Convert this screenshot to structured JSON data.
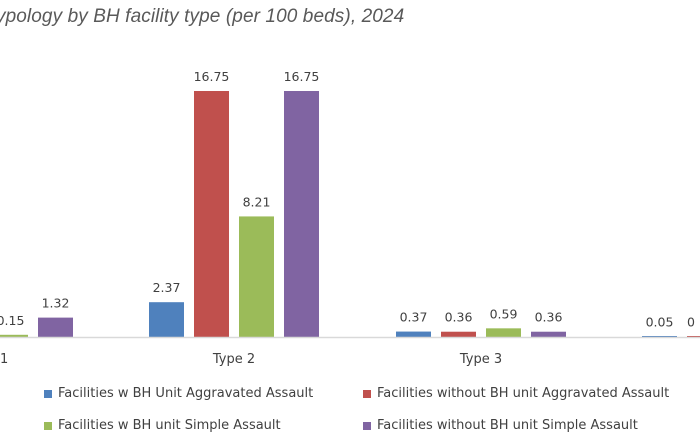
{
  "chart_data": {
    "type": "bar",
    "title": "ypology by BH facility type (per 100 beds), 2024",
    "xlabel": "",
    "ylabel": "",
    "ylim": [
      0,
      16.75
    ],
    "grid": false,
    "legend_position": "bottom",
    "categories": [
      "1",
      "Type 2",
      "Type 3",
      ""
    ],
    "series": [
      {
        "name": "Facilities w BH Unit Aggravated Assault",
        "color": "#4F81BD",
        "values": [
          null,
          2.37,
          0.37,
          0.05
        ],
        "labels": [
          "",
          "2.37",
          "0.37",
          "0.05"
        ]
      },
      {
        "name": "Facilities without BH unit Aggravated Assault",
        "color": "#C0504D",
        "values": [
          null,
          16.75,
          0.36,
          0.05
        ],
        "labels": [
          "",
          "16.75",
          "0.36",
          "0"
        ]
      },
      {
        "name": "Facilities w BH unit Simple Assault",
        "color": "#9BBB59",
        "values": [
          0.15,
          8.21,
          0.59,
          null
        ],
        "labels": [
          "0.15",
          "8.21",
          "0.59",
          ""
        ]
      },
      {
        "name": "Facilities without BH unit Simple Assault",
        "color": "#8064A2",
        "values": [
          1.32,
          16.75,
          0.36,
          null
        ],
        "labels": [
          "1.32",
          "16.75",
          "0.36",
          ""
        ]
      }
    ],
    "legend": [
      "Facilities w BH Unit Aggravated Assault",
      "Facilities without BH unit Aggravated Assault",
      "Facilities w BH unit Simple Assault",
      "Facilities without BH unit Simple Assault"
    ]
  }
}
